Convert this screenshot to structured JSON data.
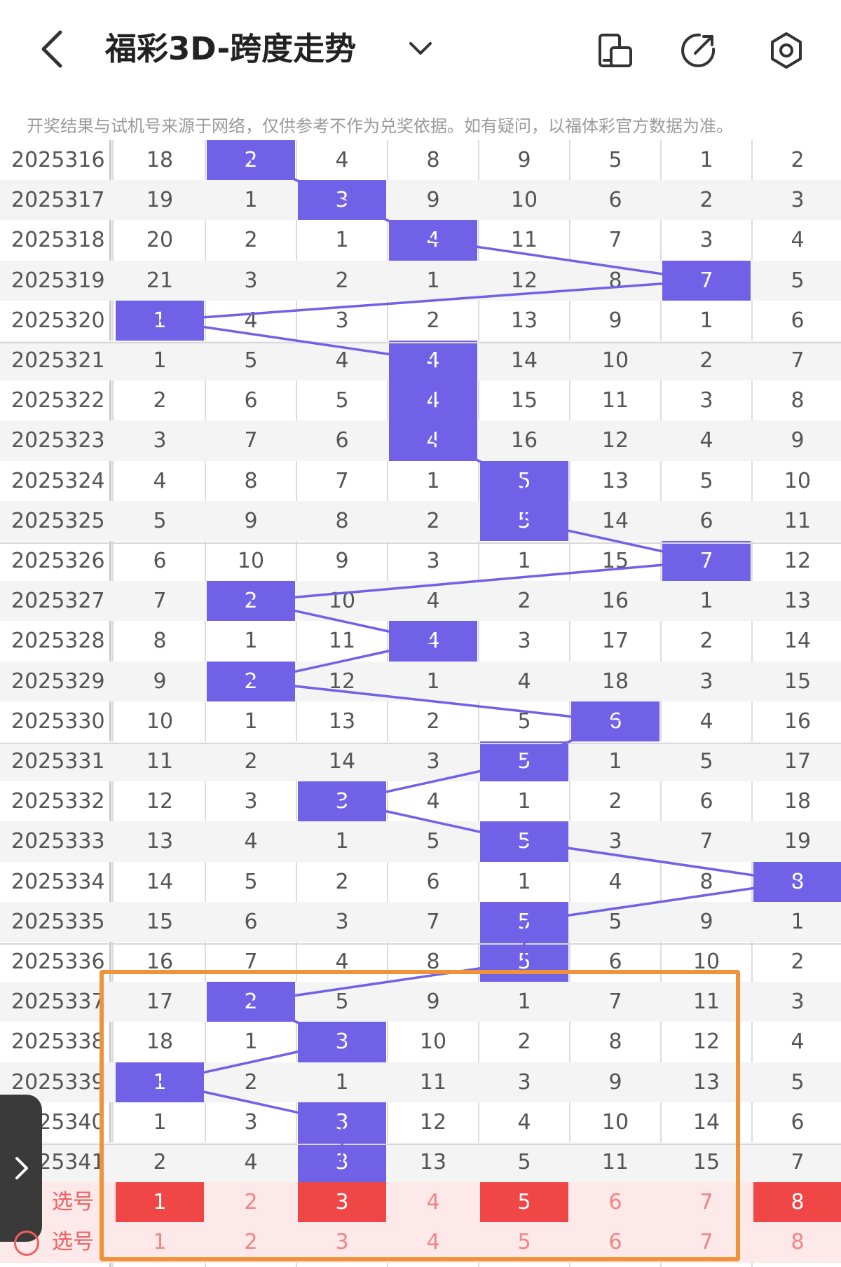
{
  "header": {
    "title": "福彩3D-跨度走势",
    "icons": [
      "back-icon",
      "chevron-down-icon",
      "device-icon",
      "share-icon",
      "settings-icon"
    ]
  },
  "notice": "开奖结果与试机号来源于网络，仅供参考不作为兑奖依据。如有疑问，以福体彩官方数据为准。",
  "colors": {
    "hit": "#7161e6",
    "trend_line": "#7161e6",
    "pick_selected": "#f04646",
    "pick_unselected": "#f08585",
    "highlight_box": "#f0923a"
  },
  "rows": [
    {
      "period": "2025316",
      "values": [
        "18",
        "2",
        "4",
        "8",
        "9",
        "5",
        "1",
        "2"
      ],
      "hit": 1
    },
    {
      "period": "2025317",
      "values": [
        "19",
        "1",
        "3",
        "9",
        "10",
        "6",
        "2",
        "3"
      ],
      "hit": 2
    },
    {
      "period": "2025318",
      "values": [
        "20",
        "2",
        "1",
        "4",
        "11",
        "7",
        "3",
        "4"
      ],
      "hit": 3
    },
    {
      "period": "2025319",
      "values": [
        "21",
        "3",
        "2",
        "1",
        "12",
        "8",
        "7",
        "5"
      ],
      "hit": 6
    },
    {
      "period": "2025320",
      "values": [
        "1",
        "4",
        "3",
        "2",
        "13",
        "9",
        "1",
        "6"
      ],
      "hit": 0
    },
    {
      "period": "2025321",
      "values": [
        "1",
        "5",
        "4",
        "4",
        "14",
        "10",
        "2",
        "7"
      ],
      "hit": 3
    },
    {
      "period": "2025322",
      "values": [
        "2",
        "6",
        "5",
        "4",
        "15",
        "11",
        "3",
        "8"
      ],
      "hit": 3
    },
    {
      "period": "2025323",
      "values": [
        "3",
        "7",
        "6",
        "4",
        "16",
        "12",
        "4",
        "9"
      ],
      "hit": 3
    },
    {
      "period": "2025324",
      "values": [
        "4",
        "8",
        "7",
        "1",
        "5",
        "13",
        "5",
        "10"
      ],
      "hit": 4
    },
    {
      "period": "2025325",
      "values": [
        "5",
        "9",
        "8",
        "2",
        "5",
        "14",
        "6",
        "11"
      ],
      "hit": 4
    },
    {
      "period": "2025326",
      "values": [
        "6",
        "10",
        "9",
        "3",
        "1",
        "15",
        "7",
        "12"
      ],
      "hit": 6
    },
    {
      "period": "2025327",
      "values": [
        "7",
        "2",
        "10",
        "4",
        "2",
        "16",
        "1",
        "13"
      ],
      "hit": 1
    },
    {
      "period": "2025328",
      "values": [
        "8",
        "1",
        "11",
        "4",
        "3",
        "17",
        "2",
        "14"
      ],
      "hit": 3
    },
    {
      "period": "2025329",
      "values": [
        "9",
        "2",
        "12",
        "1",
        "4",
        "18",
        "3",
        "15"
      ],
      "hit": 1
    },
    {
      "period": "2025330",
      "values": [
        "10",
        "1",
        "13",
        "2",
        "5",
        "6",
        "4",
        "16"
      ],
      "hit": 5
    },
    {
      "period": "2025331",
      "values": [
        "11",
        "2",
        "14",
        "3",
        "5",
        "1",
        "5",
        "17"
      ],
      "hit": 4
    },
    {
      "period": "2025332",
      "values": [
        "12",
        "3",
        "3",
        "4",
        "1",
        "2",
        "6",
        "18"
      ],
      "hit": 2
    },
    {
      "period": "2025333",
      "values": [
        "13",
        "4",
        "1",
        "5",
        "5",
        "3",
        "7",
        "19"
      ],
      "hit": 4
    },
    {
      "period": "2025334",
      "values": [
        "14",
        "5",
        "2",
        "6",
        "1",
        "4",
        "8",
        "8"
      ],
      "hit": 7
    },
    {
      "period": "2025335",
      "values": [
        "15",
        "6",
        "3",
        "7",
        "5",
        "5",
        "9",
        "1"
      ],
      "hit": 4
    },
    {
      "period": "2025336",
      "values": [
        "16",
        "7",
        "4",
        "8",
        "5",
        "6",
        "10",
        "2"
      ],
      "hit": 4
    },
    {
      "period": "2025337",
      "values": [
        "17",
        "2",
        "5",
        "9",
        "1",
        "7",
        "11",
        "3"
      ],
      "hit": 1
    },
    {
      "period": "2025338",
      "values": [
        "18",
        "1",
        "3",
        "10",
        "2",
        "8",
        "12",
        "4"
      ],
      "hit": 2
    },
    {
      "period": "2025339",
      "values": [
        "1",
        "2",
        "1",
        "11",
        "3",
        "9",
        "13",
        "5"
      ],
      "hit": 0
    },
    {
      "period": "2025340",
      "values": [
        "1",
        "3",
        "3",
        "12",
        "4",
        "10",
        "14",
        "6"
      ],
      "hit": 2
    },
    {
      "period": "2025341",
      "values": [
        "2",
        "4",
        "3",
        "13",
        "5",
        "11",
        "15",
        "7"
      ],
      "hit": 2
    }
  ],
  "pick_rows": [
    {
      "label": "选号",
      "values": [
        "1",
        "2",
        "3",
        "4",
        "5",
        "6",
        "7",
        "8"
      ],
      "selected": [
        true,
        false,
        true,
        false,
        true,
        false,
        false,
        true
      ]
    },
    {
      "label": "选号",
      "values": [
        "1",
        "2",
        "3",
        "4",
        "5",
        "6",
        "7",
        "8"
      ],
      "selected": [
        false,
        false,
        false,
        false,
        false,
        false,
        false,
        false
      ]
    }
  ]
}
